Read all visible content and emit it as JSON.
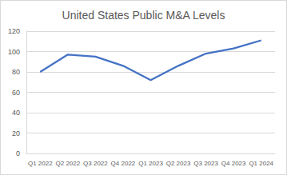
{
  "chart_data": {
    "type": "line",
    "title": "United States Public M&A Levels",
    "categories": [
      "Q1 2022",
      "Q2 2022",
      "Q3 2022",
      "Q4 2022",
      "Q1 2023",
      "Q2 2023",
      "Q3 2023",
      "Q4 2023",
      "Q1 2024"
    ],
    "values": [
      80,
      97,
      95,
      86,
      72,
      86,
      98,
      103,
      111
    ],
    "color": "#4472c4",
    "ylim": [
      0,
      120
    ],
    "yticks": [
      0,
      20,
      40,
      60,
      80,
      100,
      120
    ],
    "grid": true
  }
}
